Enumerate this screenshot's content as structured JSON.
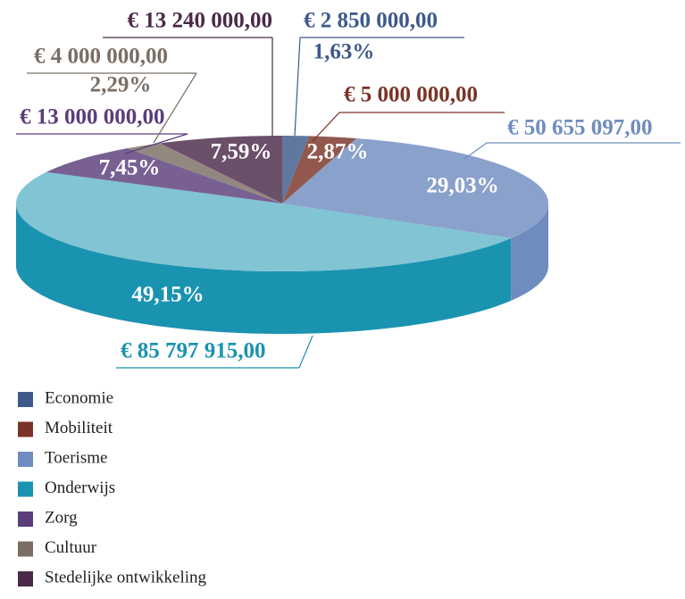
{
  "chart_data": {
    "type": "pie",
    "categories": [
      "Economie",
      "Mobiliteit",
      "Toerisme",
      "Onderwijs",
      "Zorg",
      "Cultuur",
      "Stedelijke ontwikkeling"
    ],
    "values": [
      1.63,
      2.87,
      29.03,
      49.15,
      7.45,
      2.29,
      7.59
    ],
    "value_labels": [
      "1,63%",
      "2,87%",
      "29,03%",
      "49,15%",
      "7,45%",
      "2,29%",
      "7,59%"
    ],
    "amounts": [
      2850000,
      5000000,
      50655097,
      85797915,
      13000000,
      4000000,
      13240000
    ],
    "amount_labels": [
      "€ 2 850 000,00",
      "€ 5 000 000,00",
      "€ 50 655 097,00",
      "€ 85 797 915,00",
      "€ 13 000 000,00",
      "€ 4 000 000,00",
      "€ 13 240 000,00"
    ],
    "colors": [
      "#3d5a8a",
      "#7a3326",
      "#6f8cbf",
      "#1a93b0",
      "#5a3d7a",
      "#7a6e64",
      "#4a2a48"
    ]
  }
}
